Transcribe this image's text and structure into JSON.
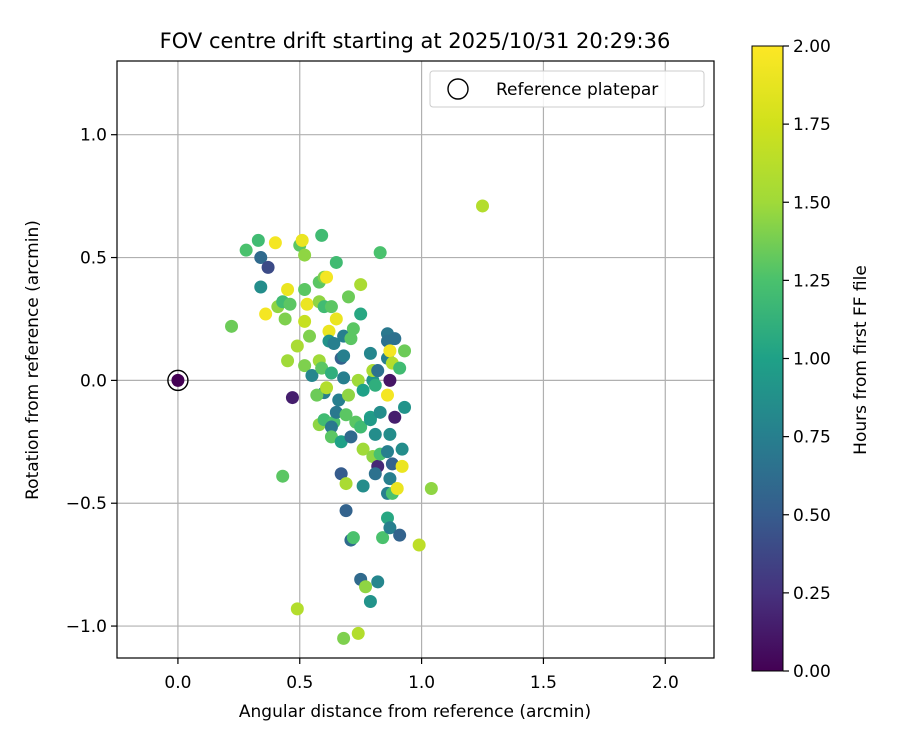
{
  "chart_data": {
    "type": "scatter",
    "title": "FOV centre drift starting at 2025/10/31 20:29:36",
    "xlabel": "Angular distance from reference (arcmin)",
    "ylabel": "Rotation from reference (arcmin)",
    "xlim": [
      -0.25,
      2.2
    ],
    "ylim": [
      -1.13,
      1.3
    ],
    "xticks": [
      0.0,
      0.5,
      1.0,
      1.5,
      2.0
    ],
    "xtick_labels": [
      "0.0",
      "0.5",
      "1.0",
      "1.5",
      "2.0"
    ],
    "yticks": [
      -1.0,
      -0.5,
      0.0,
      0.5,
      1.0
    ],
    "ytick_labels": [
      "−1.0",
      "−0.5",
      "0.0",
      "0.5",
      "1.0"
    ],
    "grid": true,
    "legend": {
      "label": "Reference platepar",
      "position": "top-right"
    },
    "reference": {
      "x": 0.0,
      "y": 0.0
    },
    "colorbar": {
      "label": "Hours from first FF file",
      "min": 0.0,
      "max": 2.0,
      "ticks": [
        0.0,
        0.25,
        0.5,
        0.75,
        1.0,
        1.25,
        1.5,
        1.75,
        2.0
      ],
      "tick_labels": [
        "0.00",
        "0.25",
        "0.50",
        "0.75",
        "1.00",
        "1.25",
        "1.50",
        "1.75",
        "2.00"
      ],
      "colormap": "viridis"
    },
    "points": [
      {
        "x": 1.25,
        "y": 0.71,
        "c": 1.6
      },
      {
        "x": 0.22,
        "y": 0.22,
        "c": 1.35
      },
      {
        "x": 0.28,
        "y": 0.53,
        "c": 1.25
      },
      {
        "x": 0.33,
        "y": 0.57,
        "c": 1.2
      },
      {
        "x": 0.34,
        "y": 0.5,
        "c": 0.6
      },
      {
        "x": 0.37,
        "y": 0.46,
        "c": 0.4
      },
      {
        "x": 0.34,
        "y": 0.38,
        "c": 0.85
      },
      {
        "x": 0.36,
        "y": 0.27,
        "c": 1.95
      },
      {
        "x": 0.4,
        "y": 0.56,
        "c": 1.95
      },
      {
        "x": 0.41,
        "y": 0.3,
        "c": 1.45
      },
      {
        "x": 0.43,
        "y": 0.32,
        "c": 1.2
      },
      {
        "x": 0.44,
        "y": 0.25,
        "c": 1.4
      },
      {
        "x": 0.45,
        "y": 0.37,
        "c": 1.9
      },
      {
        "x": 0.46,
        "y": 0.31,
        "c": 1.3
      },
      {
        "x": 0.45,
        "y": 0.08,
        "c": 1.5
      },
      {
        "x": 0.47,
        "y": -0.07,
        "c": 0.15
      },
      {
        "x": 0.43,
        "y": -0.39,
        "c": 1.3
      },
      {
        "x": 0.49,
        "y": 0.14,
        "c": 1.55
      },
      {
        "x": 0.5,
        "y": 0.55,
        "c": 1.3
      },
      {
        "x": 0.51,
        "y": 0.57,
        "c": 1.9
      },
      {
        "x": 0.52,
        "y": 0.51,
        "c": 1.45
      },
      {
        "x": 0.52,
        "y": 0.37,
        "c": 1.3
      },
      {
        "x": 0.52,
        "y": 0.24,
        "c": 1.7
      },
      {
        "x": 0.53,
        "y": 0.31,
        "c": 1.9
      },
      {
        "x": 0.54,
        "y": 0.18,
        "c": 1.4
      },
      {
        "x": 0.52,
        "y": 0.06,
        "c": 1.4
      },
      {
        "x": 0.55,
        "y": 0.02,
        "c": 0.8
      },
      {
        "x": 0.59,
        "y": 0.59,
        "c": 1.2
      },
      {
        "x": 0.58,
        "y": 0.4,
        "c": 1.3
      },
      {
        "x": 0.6,
        "y": 0.42,
        "c": 1.4
      },
      {
        "x": 0.61,
        "y": 0.42,
        "c": 1.95
      },
      {
        "x": 0.58,
        "y": 0.32,
        "c": 1.45
      },
      {
        "x": 0.6,
        "y": 0.3,
        "c": 1.2
      },
      {
        "x": 0.58,
        "y": 0.08,
        "c": 1.5
      },
      {
        "x": 0.59,
        "y": 0.05,
        "c": 1.3
      },
      {
        "x": 0.6,
        "y": -0.05,
        "c": 0.75
      },
      {
        "x": 0.57,
        "y": -0.06,
        "c": 1.35
      },
      {
        "x": 0.61,
        "y": -0.03,
        "c": 1.6
      },
      {
        "x": 0.58,
        "y": -0.18,
        "c": 1.45
      },
      {
        "x": 0.6,
        "y": -0.16,
        "c": 1.2
      },
      {
        "x": 0.62,
        "y": 0.2,
        "c": 1.9
      },
      {
        "x": 0.62,
        "y": 0.16,
        "c": 0.9
      },
      {
        "x": 0.63,
        "y": 0.3,
        "c": 1.3
      },
      {
        "x": 0.64,
        "y": 0.15,
        "c": 0.75
      },
      {
        "x": 0.65,
        "y": 0.25,
        "c": 1.9
      },
      {
        "x": 0.65,
        "y": 0.48,
        "c": 1.2
      },
      {
        "x": 0.63,
        "y": 0.03,
        "c": 1.1
      },
      {
        "x": 0.64,
        "y": -0.17,
        "c": 1.25
      },
      {
        "x": 0.63,
        "y": -0.19,
        "c": 0.7
      },
      {
        "x": 0.63,
        "y": -0.23,
        "c": 1.3
      },
      {
        "x": 0.65,
        "y": -0.13,
        "c": 0.7
      },
      {
        "x": 0.66,
        "y": -0.08,
        "c": 0.75
      },
      {
        "x": 0.67,
        "y": -0.25,
        "c": 1.0
      },
      {
        "x": 0.67,
        "y": 0.09,
        "c": 0.55
      },
      {
        "x": 0.68,
        "y": 0.18,
        "c": 0.75
      },
      {
        "x": 0.68,
        "y": 0.1,
        "c": 0.75
      },
      {
        "x": 0.68,
        "y": 0.01,
        "c": 0.75
      },
      {
        "x": 0.69,
        "y": -0.14,
        "c": 1.3
      },
      {
        "x": 0.7,
        "y": 0.34,
        "c": 1.35
      },
      {
        "x": 0.7,
        "y": -0.06,
        "c": 1.45
      },
      {
        "x": 0.71,
        "y": 0.17,
        "c": 1.3
      },
      {
        "x": 0.72,
        "y": 0.21,
        "c": 1.3
      },
      {
        "x": 0.71,
        "y": -0.23,
        "c": 0.6
      },
      {
        "x": 0.67,
        "y": -0.38,
        "c": 0.5
      },
      {
        "x": 0.69,
        "y": -0.42,
        "c": 1.55
      },
      {
        "x": 0.69,
        "y": -0.53,
        "c": 0.55
      },
      {
        "x": 0.71,
        "y": -0.65,
        "c": 0.6
      },
      {
        "x": 0.72,
        "y": -0.64,
        "c": 1.25
      },
      {
        "x": 0.73,
        "y": -0.17,
        "c": 1.3
      },
      {
        "x": 0.74,
        "y": 0.0,
        "c": 1.5
      },
      {
        "x": 0.75,
        "y": 0.27,
        "c": 1.05
      },
      {
        "x": 0.75,
        "y": 0.39,
        "c": 1.55
      },
      {
        "x": 0.75,
        "y": -0.19,
        "c": 1.2
      },
      {
        "x": 0.76,
        "y": -0.04,
        "c": 1.0
      },
      {
        "x": 0.76,
        "y": -0.28,
        "c": 1.5
      },
      {
        "x": 0.76,
        "y": -0.43,
        "c": 0.85
      },
      {
        "x": 0.75,
        "y": -0.81,
        "c": 0.6
      },
      {
        "x": 0.77,
        "y": -0.84,
        "c": 1.45
      },
      {
        "x": 0.74,
        "y": -1.03,
        "c": 1.6
      },
      {
        "x": 0.68,
        "y": -1.05,
        "c": 1.4
      },
      {
        "x": 0.79,
        "y": -0.9,
        "c": 0.9
      },
      {
        "x": 0.82,
        "y": -0.82,
        "c": 0.8
      },
      {
        "x": 0.79,
        "y": 0.11,
        "c": 0.8
      },
      {
        "x": 0.8,
        "y": 0.0,
        "c": 0.9
      },
      {
        "x": 0.8,
        "y": 0.04,
        "c": 1.55
      },
      {
        "x": 0.81,
        "y": -0.02,
        "c": 1.1
      },
      {
        "x": 0.82,
        "y": 0.04,
        "c": 0.65
      },
      {
        "x": 0.79,
        "y": -0.15,
        "c": 1.0
      },
      {
        "x": 0.79,
        "y": -0.16,
        "c": 0.95
      },
      {
        "x": 0.81,
        "y": -0.22,
        "c": 0.85
      },
      {
        "x": 0.8,
        "y": -0.31,
        "c": 1.45
      },
      {
        "x": 0.82,
        "y": -0.35,
        "c": 0.2
      },
      {
        "x": 0.81,
        "y": -0.38,
        "c": 0.65
      },
      {
        "x": 0.83,
        "y": 0.52,
        "c": 1.25
      },
      {
        "x": 0.83,
        "y": -0.13,
        "c": 0.85
      },
      {
        "x": 0.83,
        "y": -0.3,
        "c": 1.25
      },
      {
        "x": 0.84,
        "y": -0.64,
        "c": 1.25
      },
      {
        "x": 0.86,
        "y": 0.19,
        "c": 0.7
      },
      {
        "x": 0.86,
        "y": 0.16,
        "c": 0.65
      },
      {
        "x": 0.86,
        "y": 0.09,
        "c": 0.75
      },
      {
        "x": 0.86,
        "y": -0.06,
        "c": 1.95
      },
      {
        "x": 0.86,
        "y": -0.29,
        "c": 0.75
      },
      {
        "x": 0.86,
        "y": -0.46,
        "c": 0.75
      },
      {
        "x": 0.86,
        "y": -0.56,
        "c": 1.05
      },
      {
        "x": 0.87,
        "y": 0.0,
        "c": 0.1
      },
      {
        "x": 0.87,
        "y": 0.12,
        "c": 1.95
      },
      {
        "x": 0.87,
        "y": -0.22,
        "c": 0.85
      },
      {
        "x": 0.87,
        "y": -0.4,
        "c": 0.75
      },
      {
        "x": 0.88,
        "y": 0.07,
        "c": 1.6
      },
      {
        "x": 0.88,
        "y": -0.46,
        "c": 1.25
      },
      {
        "x": 0.87,
        "y": -0.6,
        "c": 0.75
      },
      {
        "x": 0.88,
        "y": -0.34,
        "c": 0.55
      },
      {
        "x": 0.89,
        "y": -0.15,
        "c": 0.15
      },
      {
        "x": 0.89,
        "y": 0.17,
        "c": 0.65
      },
      {
        "x": 0.9,
        "y": -0.44,
        "c": 1.9
      },
      {
        "x": 0.91,
        "y": -0.63,
        "c": 0.55
      },
      {
        "x": 0.91,
        "y": 0.05,
        "c": 1.2
      },
      {
        "x": 0.92,
        "y": -0.35,
        "c": 1.9
      },
      {
        "x": 0.92,
        "y": -0.28,
        "c": 0.85
      },
      {
        "x": 0.93,
        "y": 0.12,
        "c": 1.35
      },
      {
        "x": 0.93,
        "y": -0.11,
        "c": 0.9
      },
      {
        "x": 0.99,
        "y": -0.67,
        "c": 1.65
      },
      {
        "x": 1.04,
        "y": -0.44,
        "c": 1.45
      },
      {
        "x": 0.49,
        "y": -0.93,
        "c": 1.6
      }
    ]
  }
}
